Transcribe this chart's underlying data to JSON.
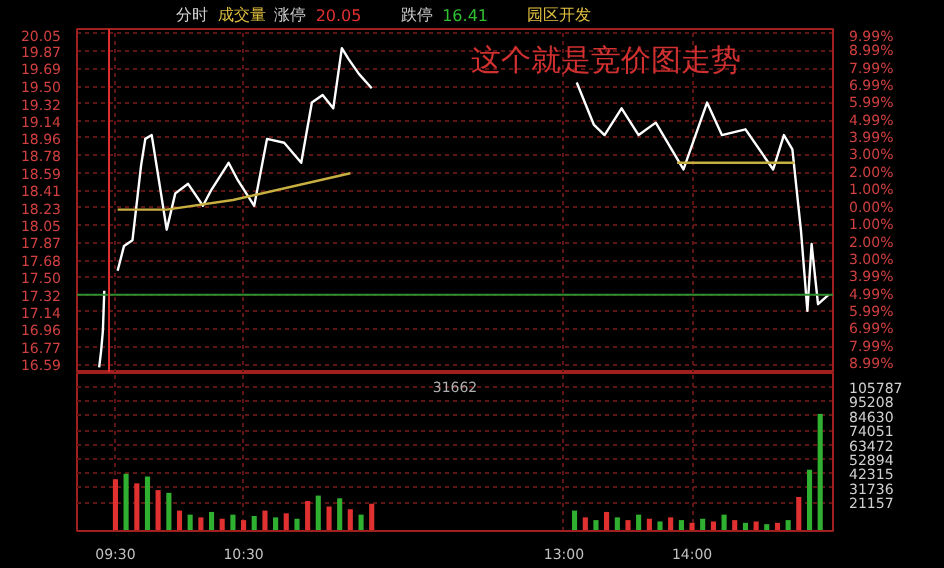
{
  "chart_data": [
    {
      "type": "line",
      "annotations": [
        "分时",
        "成交量",
        "涨停",
        "20.05",
        "跌停",
        "16.41",
        "园区开发",
        "这个就是竞价图走势"
      ],
      "xlim": [
        9.2,
        15.1
      ],
      "xticks": [
        9.5,
        10.5,
        13,
        14
      ],
      "ylim": [
        16.5,
        20.1
      ],
      "yticks": [
        20.05,
        19.87,
        19.69,
        {
          "value": 19.5,
          "label": "19.50"
        },
        19.32,
        19.14,
        18.96,
        18.78,
        18.59,
        18.41,
        18.23,
        18.05,
        17.87,
        17.68,
        {
          "value": 17.5,
          "label": "17.50"
        },
        17.32,
        17.14,
        16.96,
        16.77,
        16.59
      ],
      "y2lim": [
        -9.49,
        10.26
      ],
      "y2ticks": [
        {
          "value": 9.99,
          "label": "9.99%"
        },
        {
          "value": 8.99,
          "label": "8.99%"
        },
        {
          "value": 7.99,
          "label": "7.99%"
        },
        {
          "value": 6.99,
          "label": "6.99%"
        },
        {
          "value": 5.99,
          "label": "5.99%"
        },
        {
          "value": 4.99,
          "label": "4.99%"
        },
        {
          "value": 3.99,
          "label": "3.99%"
        },
        {
          "value": 3.0,
          "label": "3.00%"
        },
        {
          "value": 2.0,
          "label": "2.00%"
        },
        {
          "value": 1.0,
          "label": "1.00%"
        },
        {
          "value": 0.0,
          "label": "0.00%"
        },
        {
          "value": -1.0,
          "label": "1.00%"
        },
        {
          "value": -2.0,
          "label": "2.00%"
        },
        {
          "value": -3.0,
          "label": "3.00%"
        },
        {
          "value": -3.99,
          "label": "3.99%"
        },
        {
          "value": -4.99,
          "label": "4.99%"
        },
        {
          "value": -5.99,
          "label": "5.99%"
        },
        {
          "value": -6.99,
          "label": "6.99%"
        },
        {
          "value": -7.99,
          "label": "7.99%"
        },
        {
          "value": -8.99,
          "label": "8.99%"
        }
      ],
      "tick_labels": "y",
      "grid": true,
      "ref_lines": [
        {
          "axis": "y",
          "value": 17.32,
          "color": "#2f8f2f"
        },
        {
          "axis": "x",
          "value": 9.45,
          "color": "#e03030"
        }
      ],
      "series": [
        {
          "color": "#ffffff",
          "x": [
            9.373,
            9.388,
            9.402,
            9.413
          ],
          "values": [
            16.56,
            16.73,
            16.94,
            17.36
          ]
        },
        {
          "color": "#ffffff",
          "x": [
            9.517,
            9.567,
            9.633,
            9.7,
            9.733,
            9.783,
            9.833,
            9.9,
            9.967,
            10.067,
            10.183,
            10.25,
            10.383,
            10.45,
            10.583,
            10.683,
            10.817,
            10.95,
            11.033,
            11.117,
            11.2,
            11.267,
            11.317,
            11.4,
            11.5,
            12.25,
            13.1,
            13.233,
            13.317,
            13.45,
            13.583,
            13.717,
            13.933,
            14.117,
            14.233,
            14.417,
            14.633,
            14.717,
            14.783,
            14.85,
            14.9,
            14.933,
            14.983,
            15.067
          ],
          "values": [
            17.57,
            17.83,
            17.89,
            18.67,
            18.95,
            18.99,
            18.57,
            18.0,
            18.38,
            18.48,
            18.25,
            18.42,
            18.7,
            18.53,
            18.25,
            18.95,
            18.91,
            18.7,
            19.33,
            19.41,
            19.27,
            19.9,
            19.79,
            19.63,
            19.48,
            null,
            19.54,
            19.1,
            18.99,
            19.27,
            18.99,
            19.12,
            18.63,
            19.33,
            18.99,
            19.05,
            18.63,
            18.99,
            18.84,
            17.99,
            17.15,
            17.85,
            17.22,
            17.32
          ]
        },
        {
          "color": "#c8b040",
          "x": [
            9.517,
            9.9,
            10.417,
            11.333,
            12.25,
            13.883,
            14.8
          ],
          "values": [
            18.21,
            18.21,
            18.31,
            18.59,
            null,
            18.7,
            18.7
          ]
        }
      ]
    },
    {
      "type": "bar",
      "annotations": [
        "31662"
      ],
      "xlim": [
        9.2,
        15.1
      ],
      "xticks": [
        {
          "value": 9.5,
          "label": "09:30"
        },
        {
          "value": 10.5,
          "label": "10:30"
        },
        {
          "value": 13,
          "label": "13:00"
        },
        {
          "value": 14,
          "label": "14:00"
        }
      ],
      "ylim": [
        0,
        116000
      ],
      "yticks": [
        105787,
        95208,
        84630,
        74051,
        63472,
        52894,
        42315,
        31736,
        21157
      ],
      "grid": true,
      "x": [
        9.5,
        9.583,
        9.667,
        9.75,
        9.833,
        9.917,
        10.0,
        10.083,
        10.167,
        10.25,
        10.333,
        10.417,
        10.5,
        10.583,
        10.667,
        10.75,
        10.833,
        10.917,
        11.0,
        11.083,
        11.167,
        11.25,
        11.333,
        11.417,
        11.5,
        13.083,
        13.167,
        13.25,
        13.333,
        13.417,
        13.5,
        13.583,
        13.667,
        13.75,
        13.833,
        13.917,
        14.0,
        14.083,
        14.167,
        14.25,
        14.333,
        14.417,
        14.5,
        14.583,
        14.667,
        14.75,
        14.833,
        14.917,
        15.0
      ],
      "values": [
        38000,
        42000,
        35000,
        40000,
        30000,
        28000,
        15000,
        12000,
        10000,
        14000,
        9000,
        12000,
        8000,
        11000,
        15000,
        10000,
        13000,
        9000,
        22000,
        26000,
        18000,
        24000,
        16000,
        12000,
        20000,
        15000,
        10000,
        8000,
        14000,
        10000,
        8000,
        12000,
        9000,
        7000,
        10000,
        8000,
        6000,
        9000,
        7000,
        12000,
        8000,
        6000,
        7000,
        5000,
        6000,
        8000,
        25000,
        45000,
        86000
      ],
      "colors": [
        "#e03030",
        "#30b030",
        "#e03030",
        "#30b030",
        "#e03030",
        "#30b030",
        "#e03030",
        "#30b030",
        "#e03030",
        "#30b030",
        "#e03030",
        "#30b030",
        "#e03030",
        "#30b030",
        "#e03030",
        "#30b030",
        "#e03030",
        "#30b030",
        "#e03030",
        "#30b030",
        "#e03030",
        "#30b030",
        "#e03030",
        "#30b030",
        "#e03030",
        "#30b030",
        "#e03030",
        "#30b030",
        "#e03030",
        "#30b030",
        "#e03030",
        "#30b030",
        "#e03030",
        "#30b030",
        "#e03030",
        "#30b030",
        "#e03030",
        "#30b030",
        "#e03030",
        "#30b030",
        "#e03030",
        "#30b030",
        "#e03030",
        "#30b030",
        "#e03030",
        "#30b030",
        "#e03030",
        "#30b030",
        "#30b030"
      ]
    }
  ]
}
